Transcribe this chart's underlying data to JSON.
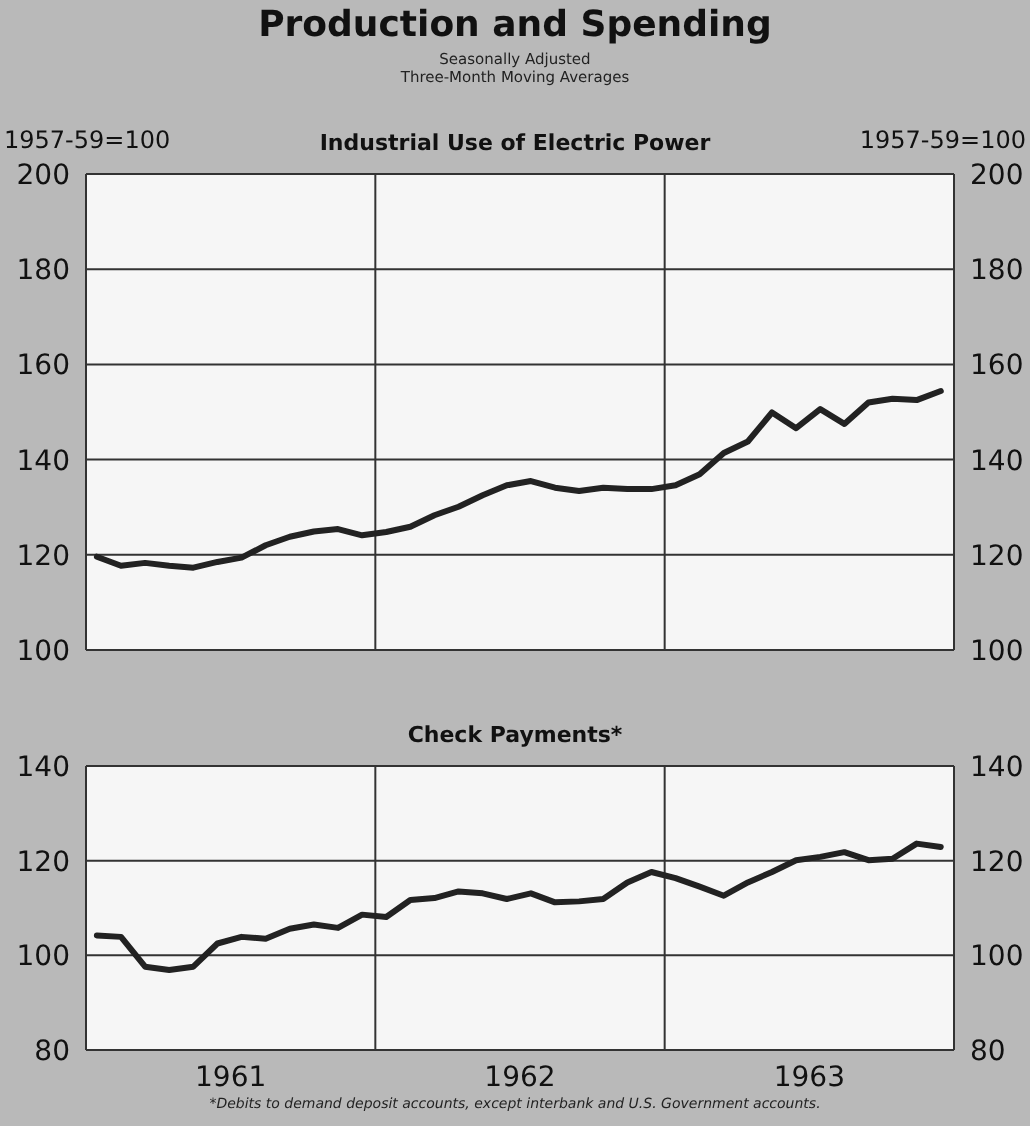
{
  "chart_data": [
    {
      "type": "line",
      "title": "Production and Spending",
      "subtitle": "Seasonally Adjusted\nThree-Month Moving Averages",
      "ylabel": "1957-59=100",
      "y2label": "1957-59=100",
      "x": [
        "1961-01-15",
        "1961-02-15",
        "1961-03-15",
        "1961-04-15",
        "1961-05-15",
        "1961-06-15",
        "1961-07-15",
        "1961-08-15",
        "1961-09-15",
        "1961-10-15",
        "1961-11-15",
        "1961-12-15",
        "1962-01-15",
        "1962-02-15",
        "1962-03-15",
        "1962-04-15",
        "1962-05-15",
        "1962-06-15",
        "1962-07-15",
        "1962-08-15",
        "1962-09-15",
        "1962-10-15",
        "1962-11-15",
        "1962-12-15",
        "1963-01-15",
        "1963-02-15",
        "1963-03-15",
        "1963-04-15",
        "1963-05-15",
        "1963-06-15",
        "1963-07-15",
        "1963-08-15",
        "1963-09-15",
        "1963-10-15",
        "1963-11-15",
        "1963-12-15"
      ],
      "series": [
        {
          "name": "Industrial Use of Electric Power",
          "color": "#222222",
          "values": [
            119.6,
            117.7,
            118.3,
            117.7,
            117.3,
            118.5,
            119.4,
            122,
            123.8,
            124.9,
            125.4,
            124.1,
            124.8,
            125.9,
            128.3,
            130.1,
            132.5,
            134.6,
            135.5,
            134.1,
            133.4,
            134.1,
            133.8,
            133.8,
            134.6,
            136.9,
            141.4,
            143.8,
            149.9,
            146.6,
            150.6,
            147.5,
            152,
            152.8,
            152.5,
            154.4
          ]
        }
      ],
      "xlim": [
        "1961-01",
        "1964-01"
      ],
      "xticks": [
        {
          "value": "1962-01",
          "label": null
        },
        {
          "value": "1963-01",
          "label": null
        }
      ],
      "ylim": [
        100,
        200
      ],
      "yticks": [
        100,
        120,
        140,
        160,
        180,
        200
      ],
      "y2lim": [
        100,
        200
      ],
      "y2ticks": [
        100,
        120,
        140,
        160,
        180,
        200
      ],
      "grid": true,
      "legend": false,
      "marker": "none",
      "line_style": "solid",
      "tick_labels": "y"
    },
    {
      "type": "line",
      "title": "Check Payments*",
      "annotations": [
        "*Debits to demand deposit accounts, except interbank and U.S. Government accounts."
      ],
      "x": [
        "1961-01-15",
        "1961-02-15",
        "1961-03-15",
        "1961-04-15",
        "1961-05-15",
        "1961-06-15",
        "1961-07-15",
        "1961-08-15",
        "1961-09-15",
        "1961-10-15",
        "1961-11-15",
        "1961-12-15",
        "1962-01-15",
        "1962-02-15",
        "1962-03-15",
        "1962-04-15",
        "1962-05-15",
        "1962-06-15",
        "1962-07-15",
        "1962-08-15",
        "1962-09-15",
        "1962-10-15",
        "1962-11-15",
        "1962-12-15",
        "1963-01-15",
        "1963-02-15",
        "1963-03-15",
        "1963-04-15",
        "1963-05-15",
        "1963-06-15",
        "1963-07-15",
        "1963-08-15",
        "1963-09-15",
        "1963-10-15",
        "1963-11-15",
        "1963-12-15"
      ],
      "series": [
        {
          "color": "#222222",
          "values": [
            104.2,
            103.9,
            97.6,
            96.9,
            97.6,
            102.5,
            103.9,
            103.5,
            105.6,
            106.5,
            105.8,
            108.6,
            108.1,
            111.7,
            112.1,
            113.5,
            113.1,
            111.9,
            113.1,
            111.2,
            111.4,
            111.9,
            115.4,
            117.6,
            116.3,
            114.5,
            112.6,
            115.4,
            117.6,
            120.1,
            120.8,
            121.8,
            120.1,
            120.4,
            123.6,
            122.9
          ]
        }
      ],
      "xlim": [
        "1961-01",
        "1964-01"
      ],
      "xticks": [
        {
          "value": "1961-07",
          "label": "1961"
        },
        {
          "value": "1962-01",
          "label": null
        },
        {
          "value": "1962-07",
          "label": "1962"
        },
        {
          "value": "1963-01",
          "label": null
        },
        {
          "value": "1963-07",
          "label": "1963"
        }
      ],
      "ylim": [
        80,
        140
      ],
      "yticks": [
        80,
        100,
        120,
        140
      ],
      "y2lim": [
        80,
        140
      ],
      "y2ticks": [
        80,
        100,
        120,
        140
      ],
      "grid": true,
      "legend": false,
      "marker": "none",
      "line_style": "solid"
    }
  ]
}
